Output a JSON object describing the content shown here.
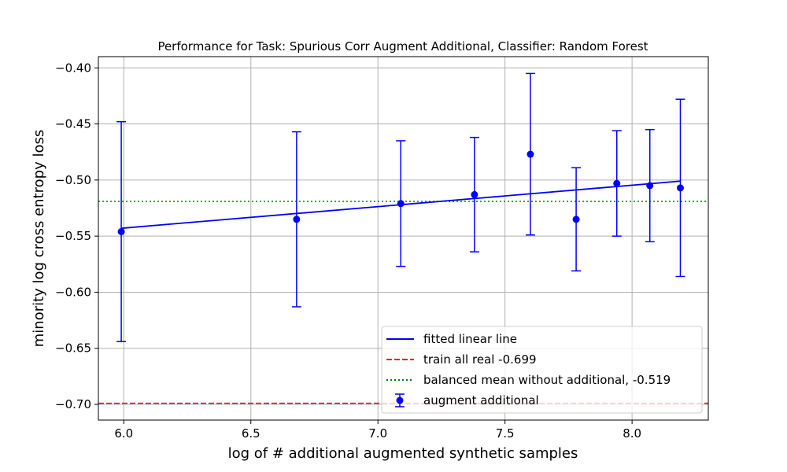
{
  "chart_data": {
    "type": "scatter",
    "title": "Performance for Task: Spurious Corr Augment Additional, Classifier: Random Forest",
    "xlabel": "log of # additional augmented synthetic samples",
    "ylabel": "minority log cross entropy loss",
    "xlim": [
      5.9,
      8.3
    ],
    "ylim": [
      -0.714,
      -0.39
    ],
    "x_ticks": [
      6.0,
      6.5,
      7.0,
      7.5,
      8.0
    ],
    "x_tick_labels": [
      "6.0",
      "6.5",
      "7.0",
      "7.5",
      "8.0"
    ],
    "y_ticks": [
      -0.4,
      -0.45,
      -0.5,
      -0.55,
      -0.6,
      -0.65,
      -0.7
    ],
    "y_tick_labels": [
      "−0.40",
      "−0.45",
      "−0.50",
      "−0.55",
      "−0.60",
      "−0.65",
      "−0.70"
    ],
    "grid": true,
    "legend_position": "bottom-right",
    "series": [
      {
        "name": "augment additional",
        "kind": "errorbar",
        "color": "#0000ff",
        "x": [
          5.99,
          6.68,
          7.09,
          7.38,
          7.6,
          7.78,
          7.94,
          8.07,
          8.19
        ],
        "y": [
          -0.546,
          -0.535,
          -0.521,
          -0.513,
          -0.477,
          -0.535,
          -0.503,
          -0.505,
          -0.507
        ],
        "err": [
          0.098,
          0.078,
          0.056,
          0.051,
          0.072,
          0.046,
          0.047,
          0.05,
          0.079
        ]
      },
      {
        "name": "fitted linear line",
        "kind": "line",
        "color": "#0000ff",
        "x": [
          5.99,
          8.19
        ],
        "y": [
          -0.543,
          -0.501
        ]
      },
      {
        "name": "train all real -0.699",
        "kind": "hline",
        "color": "#ff0000",
        "style": "dashed",
        "y": -0.699
      },
      {
        "name": "balanced mean without additional, -0.519",
        "kind": "hline",
        "color": "#008000",
        "style": "dotted",
        "y": -0.519
      }
    ]
  }
}
